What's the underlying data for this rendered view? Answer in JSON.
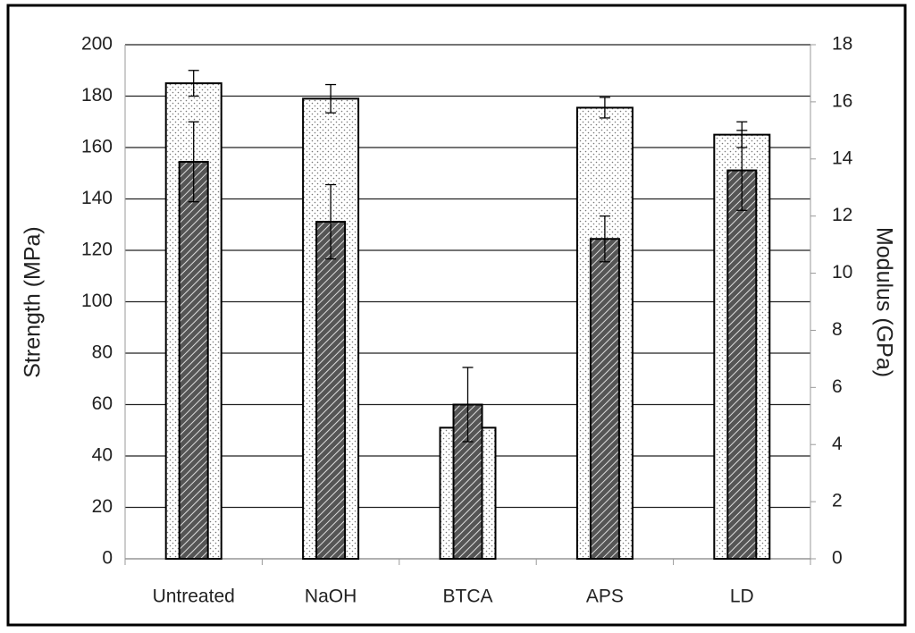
{
  "chart_data": {
    "type": "bar",
    "categories": [
      "Untreated",
      "NaOH",
      "BTCA",
      "APS",
      "LD"
    ],
    "ylabel": "Strength (MPa)",
    "y2label": "Modulus (GPa)",
    "ylim": [
      0,
      200
    ],
    "yticks": [
      0,
      20,
      40,
      60,
      80,
      100,
      120,
      140,
      160,
      180,
      200
    ],
    "y2lim": [
      0,
      18
    ],
    "y2ticks": [
      0,
      2,
      4,
      6,
      8,
      10,
      12,
      14,
      16,
      18
    ],
    "grid": true,
    "series": [
      {
        "pattern": "dots",
        "color": "#ffffff",
        "values": [
          185,
          179,
          51,
          175.5,
          165
        ],
        "errors": [
          5,
          5.5,
          0,
          4,
          5
        ]
      },
      {
        "pattern": "hatch",
        "color": "#555555",
        "axis": "y2",
        "values": [
          13.9,
          11.8,
          5.4,
          11.2,
          13.6
        ],
        "errors": [
          1.4,
          1.3,
          1.3,
          0.8,
          1.4
        ]
      }
    ]
  }
}
